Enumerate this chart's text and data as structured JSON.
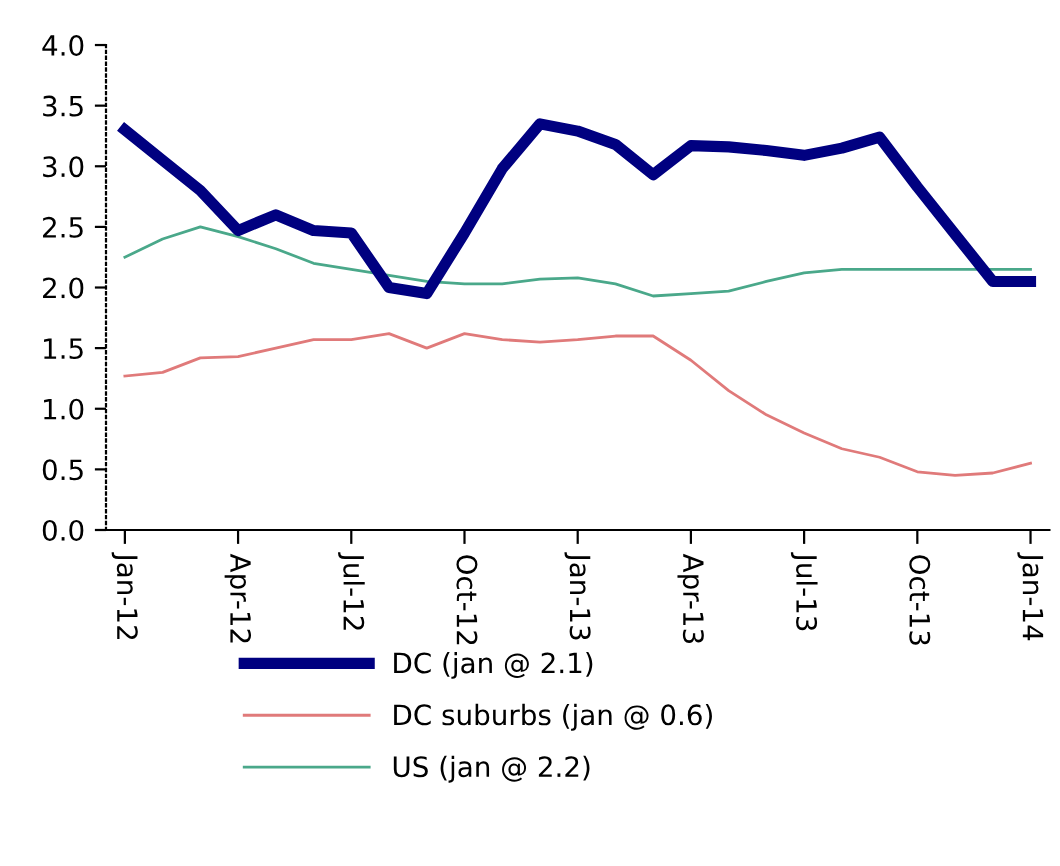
{
  "chart_data": {
    "type": "line",
    "categories": [
      "Jan-12",
      null,
      null,
      "Apr-12",
      null,
      null,
      "Jul-12",
      null,
      null,
      "Oct-12",
      null,
      null,
      "Jan-13",
      null,
      null,
      "Apr-13",
      null,
      null,
      "Jul-13",
      null,
      null,
      "Oct-13",
      null,
      null,
      "Jan-14"
    ],
    "series": [
      {
        "name": "DC (jan @ 2.1)",
        "color": "#000080",
        "values": [
          3.3,
          3.05,
          2.8,
          2.47,
          2.6,
          2.47,
          2.45,
          2.0,
          1.95,
          2.45,
          2.98,
          3.35,
          3.29,
          3.18,
          2.93,
          3.17,
          3.16,
          3.13,
          3.09,
          3.15,
          3.24,
          2.83,
          2.44,
          2.05,
          2.05
        ]
      },
      {
        "name": "DC suburbs (jan @ 0.6)",
        "color": "#e07a7a",
        "values": [
          1.27,
          1.3,
          1.42,
          1.43,
          1.5,
          1.57,
          1.57,
          1.62,
          1.5,
          1.62,
          1.57,
          1.55,
          1.57,
          1.6,
          1.6,
          1.4,
          1.15,
          0.95,
          0.8,
          0.67,
          0.6,
          0.48,
          0.45,
          0.47,
          0.55
        ]
      },
      {
        "name": "US (jan @ 2.2)",
        "color": "#4aa88a",
        "values": [
          2.25,
          2.4,
          2.5,
          2.42,
          2.32,
          2.2,
          2.15,
          2.1,
          2.05,
          2.03,
          2.03,
          2.07,
          2.08,
          2.03,
          1.93,
          1.95,
          1.97,
          2.05,
          2.12,
          2.15,
          2.15,
          2.15,
          2.15,
          2.15,
          2.15
        ]
      }
    ],
    "ylim": [
      0,
      4
    ],
    "yticks": [
      {
        "value": 0,
        "label": "0.0"
      },
      {
        "value": 0.5,
        "label": "0.5"
      },
      {
        "value": 1,
        "label": "1.0"
      },
      {
        "value": 1.5,
        "label": "1.5"
      },
      {
        "value": 2,
        "label": "2.0"
      },
      {
        "value": 2.5,
        "label": "2.5"
      },
      {
        "value": 3,
        "label": "3.0"
      },
      {
        "value": 3.5,
        "label": "3.5"
      },
      {
        "value": 4,
        "label": "4.0"
      }
    ],
    "grid": false,
    "legend": "bottom",
    "marker": "none",
    "line_style": "solid"
  }
}
